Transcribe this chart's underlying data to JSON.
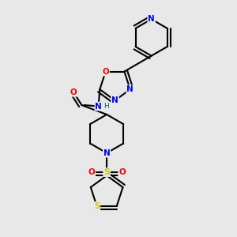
{
  "bg_color": "#e8e8e8",
  "bond_color": "#000000",
  "atom_colors": {
    "N": "#0000ff",
    "O": "#ff0000",
    "S": "#cccc00",
    "C": "#000000",
    "H": "#006060"
  },
  "bond_width": 1.5,
  "figsize": [
    3.0,
    3.0
  ],
  "dpi": 100
}
